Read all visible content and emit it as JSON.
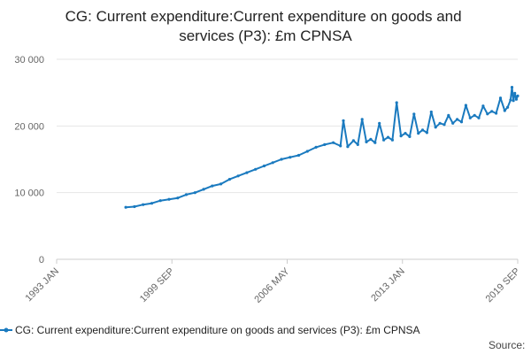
{
  "chart_data": {
    "type": "line",
    "title": "CG: Current expenditure:Current expenditure on goods and services (P3): £m CPNSA",
    "xlabel": "",
    "ylabel": "",
    "ylim": [
      0,
      30000
    ],
    "xlim": [
      "1993-01",
      "2019-09"
    ],
    "grid": true,
    "legend_position": "bottom",
    "y_ticks": [
      {
        "value": 0,
        "label": "0"
      },
      {
        "value": 10000,
        "label": "10 000"
      },
      {
        "value": 20000,
        "label": "20 000"
      },
      {
        "value": 30000,
        "label": "30 000"
      }
    ],
    "x_ticks": [
      "1993 JAN",
      "1999 SEP",
      "2006 MAY",
      "2013 JAN",
      "2019 SEP"
    ],
    "series": [
      {
        "name": "CG: Current expenditure:Current expenditure on goods and services (P3): £m CPNSA",
        "color": "#1a7abf",
        "points": [
          [
            "1997-01",
            7800
          ],
          [
            "1997-07",
            7900
          ],
          [
            "1998-01",
            8200
          ],
          [
            "1998-07",
            8400
          ],
          [
            "1999-01",
            8800
          ],
          [
            "1999-07",
            9000
          ],
          [
            "2000-01",
            9200
          ],
          [
            "2000-07",
            9700
          ],
          [
            "2001-01",
            10000
          ],
          [
            "2001-07",
            10500
          ],
          [
            "2002-01",
            11000
          ],
          [
            "2002-07",
            11300
          ],
          [
            "2003-01",
            12000
          ],
          [
            "2003-07",
            12500
          ],
          [
            "2004-01",
            13000
          ],
          [
            "2004-07",
            13500
          ],
          [
            "2005-01",
            14000
          ],
          [
            "2005-07",
            14500
          ],
          [
            "2006-01",
            15000
          ],
          [
            "2006-07",
            15300
          ],
          [
            "2007-01",
            15600
          ],
          [
            "2007-07",
            16200
          ],
          [
            "2008-01",
            16800
          ],
          [
            "2008-07",
            17200
          ],
          [
            "2009-01",
            17500
          ],
          [
            "2009-06",
            17000
          ],
          [
            "2009-08",
            20800
          ],
          [
            "2009-11",
            16900
          ],
          [
            "2010-03",
            17800
          ],
          [
            "2010-06",
            17200
          ],
          [
            "2010-09",
            21000
          ],
          [
            "2010-12",
            17600
          ],
          [
            "2011-03",
            18000
          ],
          [
            "2011-06",
            17500
          ],
          [
            "2011-09",
            20400
          ],
          [
            "2011-12",
            17900
          ],
          [
            "2012-03",
            18300
          ],
          [
            "2012-06",
            17900
          ],
          [
            "2012-09",
            23500
          ],
          [
            "2012-12",
            18500
          ],
          [
            "2013-03",
            18900
          ],
          [
            "2013-06",
            18400
          ],
          [
            "2013-09",
            21800
          ],
          [
            "2013-12",
            18900
          ],
          [
            "2014-03",
            19400
          ],
          [
            "2014-06",
            19000
          ],
          [
            "2014-09",
            22100
          ],
          [
            "2014-12",
            19800
          ],
          [
            "2015-03",
            20400
          ],
          [
            "2015-06",
            20200
          ],
          [
            "2015-09",
            21600
          ],
          [
            "2015-12",
            20400
          ],
          [
            "2016-03",
            21000
          ],
          [
            "2016-06",
            20600
          ],
          [
            "2016-09",
            23100
          ],
          [
            "2016-12",
            21200
          ],
          [
            "2017-03",
            21600
          ],
          [
            "2017-06",
            21200
          ],
          [
            "2017-09",
            23000
          ],
          [
            "2017-12",
            21800
          ],
          [
            "2018-03",
            22200
          ],
          [
            "2018-06",
            21900
          ],
          [
            "2018-09",
            24200
          ],
          [
            "2018-12",
            22300
          ],
          [
            "2019-02",
            22800
          ],
          [
            "2019-04",
            23900
          ],
          [
            "2019-05",
            25800
          ],
          [
            "2019-06",
            23800
          ],
          [
            "2019-07",
            24900
          ],
          [
            "2019-08",
            24000
          ],
          [
            "2019-09",
            24500
          ]
        ]
      }
    ]
  },
  "source_label": "Source:"
}
